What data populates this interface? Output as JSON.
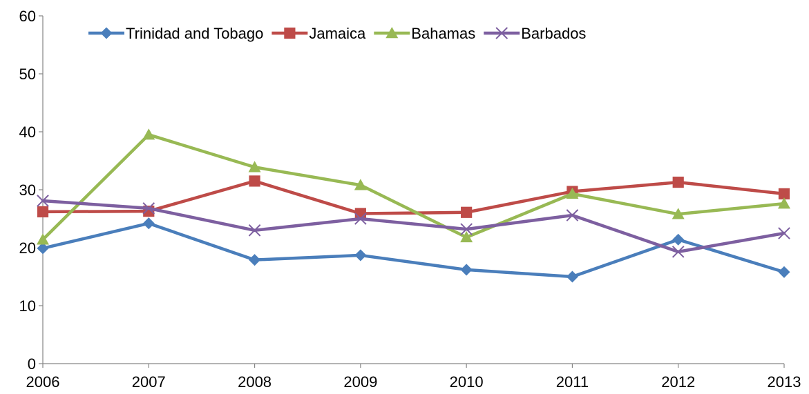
{
  "chart_data": {
    "type": "line",
    "title": "",
    "xlabel": "",
    "ylabel": "",
    "x": [
      "2006",
      "2007",
      "2008",
      "2009",
      "2010",
      "2011",
      "2012",
      "2013"
    ],
    "ylim": [
      0,
      60
    ],
    "yticks": [
      "0",
      "10",
      "20",
      "30",
      "40",
      "50",
      "60"
    ],
    "grid": false,
    "legend_position": "top",
    "series": [
      {
        "name": "Trinidad and Tobago",
        "color": "#4A7EBB",
        "marker": "diamond",
        "values": [
          19.9,
          24.2,
          17.9,
          18.7,
          16.2,
          15.0,
          21.4,
          15.8
        ]
      },
      {
        "name": "Jamaica",
        "color": "#BE4B48",
        "marker": "square",
        "values": [
          26.2,
          26.3,
          31.5,
          25.9,
          26.1,
          29.7,
          31.3,
          29.3
        ]
      },
      {
        "name": "Bahamas",
        "color": "#98B954",
        "marker": "triangle",
        "values": [
          21.4,
          39.5,
          33.9,
          30.8,
          21.8,
          29.3,
          25.8,
          27.6
        ]
      },
      {
        "name": "Barbados",
        "color": "#7D5FA0",
        "marker": "x",
        "values": [
          28.1,
          26.8,
          23.0,
          25.0,
          23.2,
          25.6,
          19.3,
          22.5
        ]
      }
    ]
  }
}
